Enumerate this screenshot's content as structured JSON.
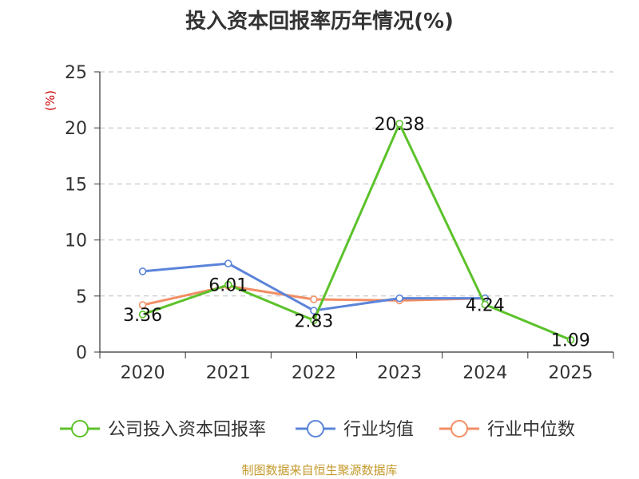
{
  "chart_data": {
    "type": "line",
    "title": "投入资本回报率历年情况(%)",
    "ylabel": "(%)",
    "xlabel": "",
    "categories": [
      "2020",
      "2021",
      "2022",
      "2023",
      "2024",
      "2025"
    ],
    "ylim": [
      0,
      25
    ],
    "yticks": [
      0,
      5,
      10,
      15,
      20,
      25
    ],
    "grid": true,
    "legend_position": "bottom",
    "series": [
      {
        "name": "公司投入资本回报率",
        "color": "#5cc22a",
        "values": [
          3.36,
          6.01,
          2.83,
          20.38,
          4.24,
          1.09
        ],
        "labels": [
          "3.36",
          "6.01",
          "2.83",
          "20.38",
          "4.24",
          "1.09"
        ]
      },
      {
        "name": "行业均值",
        "color": "#5b84d9",
        "values": [
          7.2,
          7.9,
          3.7,
          4.8,
          4.8,
          null
        ]
      },
      {
        "name": "行业中位数",
        "color": "#f28e64",
        "values": [
          4.2,
          5.9,
          4.7,
          4.6,
          4.8,
          null
        ]
      }
    ]
  },
  "source": "制图数据来自恒生聚源数据库"
}
